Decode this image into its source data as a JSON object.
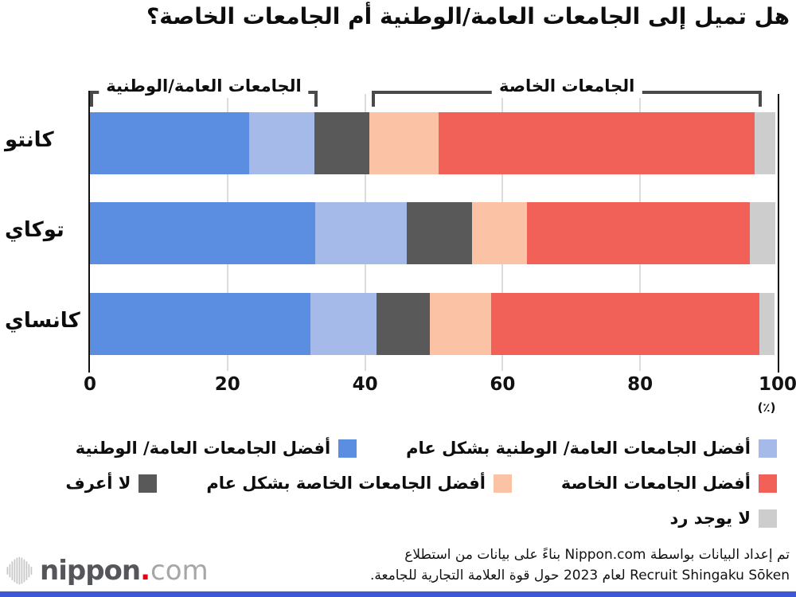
{
  "title": "هل تميل إلى الجامعات العامة/الوطنية أم الجامعات الخاصة؟",
  "chart_data": {
    "type": "bar",
    "subtype": "horizontal-stacked-percent",
    "categories": [
      "كانتو",
      "توكاي",
      "كانساي"
    ],
    "series": [
      {
        "name": "أفضل الجامعات العامة/ الوطنية",
        "color": "#5b8de1",
        "values": [
          23.2,
          32.7,
          32.1
        ]
      },
      {
        "name": "أفضل الجامعات العامة/ الوطنية بشكل عام",
        "color": "#a6bae9",
        "values": [
          9.4,
          13.4,
          9.6
        ]
      },
      {
        "name": "لا أعرف",
        "color": "#595959",
        "values": [
          8.0,
          9.4,
          7.7
        ]
      },
      {
        "name": "أفضل الجامعات الخاصة بشكل عام",
        "color": "#fbc2a5",
        "values": [
          10.1,
          8.0,
          8.9
        ]
      },
      {
        "name": "أفضل الجامعات الخاصة",
        "color": "#f26158",
        "values": [
          46.0,
          32.4,
          39.0
        ]
      },
      {
        "name": "لا يوجد رد",
        "color": "#cdcdcd",
        "values": [
          2.9,
          3.8,
          2.2
        ]
      }
    ],
    "xlim": [
      0,
      100
    ],
    "xticks": [
      0,
      20,
      40,
      60,
      80,
      100
    ],
    "unit_label": "(٪)",
    "grid": true,
    "legend_position": "bottom",
    "legend_rows": [
      [
        1,
        0
      ],
      [
        4,
        3,
        2
      ],
      [
        5
      ]
    ],
    "brackets": [
      {
        "label": "الجامعات العامة/الوطنية",
        "from_pct": 0,
        "to_pct": 33.1
      },
      {
        "label": "الجامعات الخاصة",
        "from_pct": 41.0,
        "to_pct": 97.7
      }
    ]
  },
  "footer": {
    "line1": "تم إعداد البيانات بواسطة Nippon.com بناءً على بيانات من استطلاع",
    "line2": "Recruit Shingaku Sōken لعام 2023 حول قوة العلامة التجارية للجامعة."
  },
  "logo": {
    "word": "nippon",
    "dot": ".",
    "tld": "com"
  },
  "colors": {
    "gridline": "#dcdcdc",
    "axis_spine": "#111111",
    "bracket": "#4a4a4a",
    "bottom_strip": "#3e57d6",
    "logo_word": "#55565b",
    "logo_dot": "#e60012",
    "logo_tld": "#a6a6a9",
    "logo_mark": "#c9c9c9"
  }
}
